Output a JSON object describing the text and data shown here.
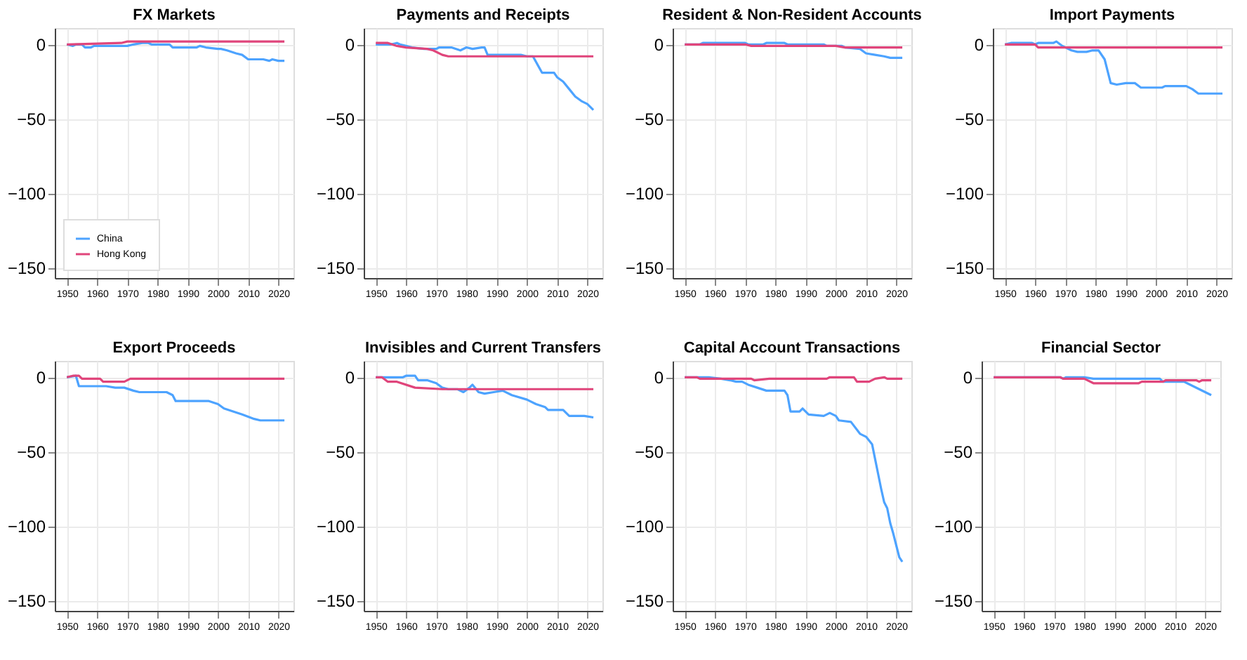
{
  "chart_data": [
    {
      "type": "line",
      "title": "FX Markets",
      "xlim": [
        1946,
        2025
      ],
      "ylim": [
        -157,
        11
      ],
      "xticks": [
        1950,
        1960,
        1970,
        1980,
        1990,
        2000,
        2010,
        2020
      ],
      "yticks": [
        0,
        -50,
        -100,
        -150
      ],
      "grid": true,
      "legend": "bottom left",
      "series": [
        {
          "name": "China",
          "color": "#4da3ff",
          "x": [
            1950,
            1952,
            1953,
            1955,
            1956,
            1958,
            1959,
            1970,
            1972,
            1975,
            1977,
            1978,
            1984,
            1985,
            1993,
            1994,
            1996,
            2000,
            2001,
            2003,
            2006,
            2008,
            2010,
            2015,
            2017,
            2018,
            2020,
            2022
          ],
          "values": [
            0,
            -1,
            0,
            0,
            -2,
            -2,
            -1,
            -1,
            0,
            1,
            1,
            0,
            0,
            -2,
            -2,
            -1,
            -2,
            -3,
            -3,
            -4,
            -6,
            -7,
            -10,
            -10,
            -11,
            -10,
            -11,
            -11
          ]
        },
        {
          "name": "Hong Kong",
          "color": "#e0457b",
          "x": [
            1950,
            1968,
            1970,
            2022
          ],
          "values": [
            0,
            1,
            2,
            2
          ]
        }
      ]
    },
    {
      "type": "line",
      "title": "Payments and Receipts",
      "xlim": [
        1946,
        2025
      ],
      "ylim": [
        -157,
        11
      ],
      "xticks": [
        1950,
        1960,
        1970,
        1980,
        1990,
        2000,
        2010,
        2020
      ],
      "yticks": [
        0,
        -50,
        -100,
        -150
      ],
      "grid": true,
      "series": [
        {
          "color": "#4da3ff",
          "x": [
            1950,
            1955,
            1957,
            1958,
            1960,
            1962,
            1966,
            1970,
            1971,
            1975,
            1978,
            1980,
            1982,
            1985,
            1986,
            1987,
            1998,
            2000,
            2002,
            2005,
            2009,
            2010,
            2012,
            2014,
            2016,
            2018,
            2020,
            2022
          ],
          "values": [
            0,
            0,
            1,
            0,
            -1,
            -2,
            -3,
            -3,
            -2,
            -2,
            -4,
            -2,
            -3,
            -2,
            -2,
            -7,
            -7,
            -8,
            -8,
            -19,
            -19,
            -22,
            -25,
            -30,
            -35,
            -38,
            -40,
            -44
          ]
        },
        {
          "color": "#e0457b",
          "x": [
            1950,
            1954,
            1957,
            1960,
            1967,
            1969,
            1972,
            1974,
            2022
          ],
          "values": [
            1,
            1,
            -1,
            -2,
            -3,
            -4,
            -7,
            -8,
            -8
          ]
        }
      ]
    },
    {
      "type": "line",
      "title": "Resident & Non-Resident Accounts",
      "xlim": [
        1946,
        2025
      ],
      "ylim": [
        -157,
        11
      ],
      "xticks": [
        1950,
        1960,
        1970,
        1980,
        1990,
        2000,
        2010,
        2020
      ],
      "yticks": [
        0,
        -50,
        -100,
        -150
      ],
      "grid": true,
      "series": [
        {
          "color": "#4da3ff",
          "x": [
            1950,
            1955,
            1956,
            1970,
            1971,
            1976,
            1977,
            1983,
            1984,
            1996,
            1997,
            2002,
            2003,
            2008,
            2010,
            2013,
            2016,
            2018,
            2022
          ],
          "values": [
            0,
            0,
            1,
            1,
            0,
            0,
            1,
            1,
            0,
            0,
            -1,
            -1,
            -2,
            -3,
            -6,
            -7,
            -8,
            -9,
            -9
          ]
        },
        {
          "color": "#e0457b",
          "x": [
            1950,
            1970,
            1972,
            2000,
            2003,
            2022
          ],
          "values": [
            0,
            0,
            -1,
            -1,
            -2,
            -2
          ]
        }
      ]
    },
    {
      "type": "line",
      "title": "Import Payments",
      "xlim": [
        1946,
        2025
      ],
      "ylim": [
        -157,
        11
      ],
      "xticks": [
        1950,
        1960,
        1970,
        1980,
        1990,
        2000,
        2010,
        2020
      ],
      "yticks": [
        0,
        -50,
        -100,
        -150
      ],
      "grid": true,
      "series": [
        {
          "color": "#4da3ff",
          "x": [
            1950,
            1952,
            1959,
            1960,
            1961,
            1966,
            1967,
            1969,
            1972,
            1974,
            1977,
            1979,
            1981,
            1983,
            1985,
            1987,
            1990,
            1993,
            1995,
            2002,
            2003,
            2010,
            2012,
            2014,
            2022
          ],
          "values": [
            0,
            1,
            1,
            0,
            1,
            1,
            2,
            -1,
            -4,
            -5,
            -5,
            -4,
            -4,
            -10,
            -26,
            -27,
            -26,
            -26,
            -29,
            -29,
            -28,
            -28,
            -30,
            -33,
            -33
          ]
        },
        {
          "color": "#e0457b",
          "x": [
            1950,
            1960,
            1961,
            2022
          ],
          "values": [
            0,
            0,
            -2,
            -2
          ]
        }
      ]
    },
    {
      "type": "line",
      "title": "Export Proceeds",
      "xlim": [
        1946,
        2025
      ],
      "ylim": [
        -157,
        11
      ],
      "xticks": [
        1950,
        1960,
        1970,
        1980,
        1990,
        2000,
        2010,
        2020
      ],
      "yticks": [
        0,
        -50,
        -100,
        -150
      ],
      "grid": true,
      "series": [
        {
          "color": "#4da3ff",
          "x": [
            1950,
            1953,
            1954,
            1963,
            1966,
            1969,
            1972,
            1974,
            1983,
            1985,
            1986,
            1997,
            2000,
            2002,
            2005,
            2008,
            2012,
            2014,
            2022
          ],
          "values": [
            0,
            1,
            -6,
            -6,
            -7,
            -7,
            -9,
            -10,
            -10,
            -12,
            -16,
            -16,
            -18,
            -21,
            -23,
            -25,
            -28,
            -29,
            -29
          ]
        },
        {
          "color": "#e0457b",
          "x": [
            1950,
            1952,
            1954,
            1955,
            1961,
            1962,
            1969,
            1971,
            2022
          ],
          "values": [
            0,
            1,
            1,
            -1,
            -1,
            -3,
            -3,
            -1,
            -1
          ]
        }
      ]
    },
    {
      "type": "line",
      "title": "Invisibles and Current Transfers",
      "xlim": [
        1946,
        2025
      ],
      "ylim": [
        -157,
        11
      ],
      "xticks": [
        1950,
        1960,
        1970,
        1980,
        1990,
        2000,
        2010,
        2020
      ],
      "yticks": [
        0,
        -50,
        -100,
        -150
      ],
      "grid": true,
      "series": [
        {
          "color": "#4da3ff",
          "x": [
            1950,
            1959,
            1960,
            1963,
            1964,
            1967,
            1970,
            1972,
            1974,
            1977,
            1979,
            1981,
            1982,
            1984,
            1986,
            1989,
            1992,
            1995,
            2000,
            2003,
            2006,
            2007,
            2012,
            2014,
            2019,
            2022
          ],
          "values": [
            0,
            0,
            1,
            1,
            -2,
            -2,
            -4,
            -7,
            -8,
            -8,
            -10,
            -7,
            -5,
            -10,
            -11,
            -10,
            -9,
            -12,
            -15,
            -18,
            -20,
            -22,
            -22,
            -26,
            -26,
            -27
          ]
        },
        {
          "color": "#e0457b",
          "x": [
            1950,
            1952,
            1954,
            1957,
            1963,
            1972,
            2022
          ],
          "values": [
            0,
            0,
            -3,
            -3,
            -7,
            -8,
            -8
          ]
        }
      ]
    },
    {
      "type": "line",
      "title": "Capital Account Transactions",
      "xlim": [
        1946,
        2025
      ],
      "ylim": [
        -157,
        11
      ],
      "xticks": [
        1950,
        1960,
        1970,
        1980,
        1990,
        2000,
        2010,
        2020
      ],
      "yticks": [
        0,
        -50,
        -100,
        -150
      ],
      "grid": true,
      "series": [
        {
          "color": "#4da3ff",
          "x": [
            1950,
            1958,
            1962,
            1965,
            1967,
            1969,
            1971,
            1974,
            1977,
            1983,
            1984,
            1985,
            1988,
            1989,
            1991,
            1996,
            1998,
            2000,
            2001,
            2005,
            2008,
            2010,
            2012,
            2013,
            2014,
            2015,
            2016,
            2017,
            2018,
            2019,
            2020,
            2021,
            2022
          ],
          "values": [
            0,
            0,
            -1,
            -2,
            -3,
            -3,
            -5,
            -7,
            -9,
            -9,
            -12,
            -23,
            -23,
            -21,
            -25,
            -26,
            -24,
            -26,
            -29,
            -30,
            -38,
            -40,
            -45,
            -55,
            -65,
            -75,
            -84,
            -88,
            -98,
            -105,
            -113,
            -121,
            -124
          ]
        },
        {
          "color": "#e0457b",
          "x": [
            1950,
            1954,
            1955,
            1972,
            1973,
            1978,
            1997,
            1998,
            2006,
            2007,
            2011,
            2013,
            2016,
            2017,
            2022
          ],
          "values": [
            0,
            0,
            -1,
            -1,
            -2,
            -1,
            -1,
            0,
            0,
            -3,
            -3,
            -1,
            0,
            -1,
            -1
          ]
        }
      ]
    },
    {
      "type": "line",
      "title": "Financial Sector",
      "xlim": [
        1946,
        2025
      ],
      "ylim": [
        -157,
        11
      ],
      "xticks": [
        1950,
        1960,
        1970,
        1980,
        1990,
        2000,
        2010,
        2020
      ],
      "yticks": [
        0,
        -50,
        -100,
        -150
      ],
      "grid": true,
      "series": [
        {
          "color": "#4da3ff",
          "x": [
            1950,
            1972,
            1973,
            1974,
            1980,
            1983,
            2005,
            2006,
            2013,
            2014,
            2016,
            2018,
            2020,
            2022
          ],
          "values": [
            0,
            0,
            -1,
            0,
            0,
            -1,
            -1,
            -3,
            -3,
            -4,
            -6,
            -8,
            -10,
            -12
          ]
        },
        {
          "color": "#e0457b",
          "x": [
            1950,
            1972,
            1973,
            1980,
            1983,
            1998,
            1999,
            2006,
            2007,
            2017,
            2018,
            2019,
            2022
          ],
          "values": [
            0,
            0,
            -1,
            -1,
            -4,
            -4,
            -3,
            -3,
            -2,
            -2,
            -3,
            -2,
            -2
          ]
        }
      ]
    }
  ]
}
